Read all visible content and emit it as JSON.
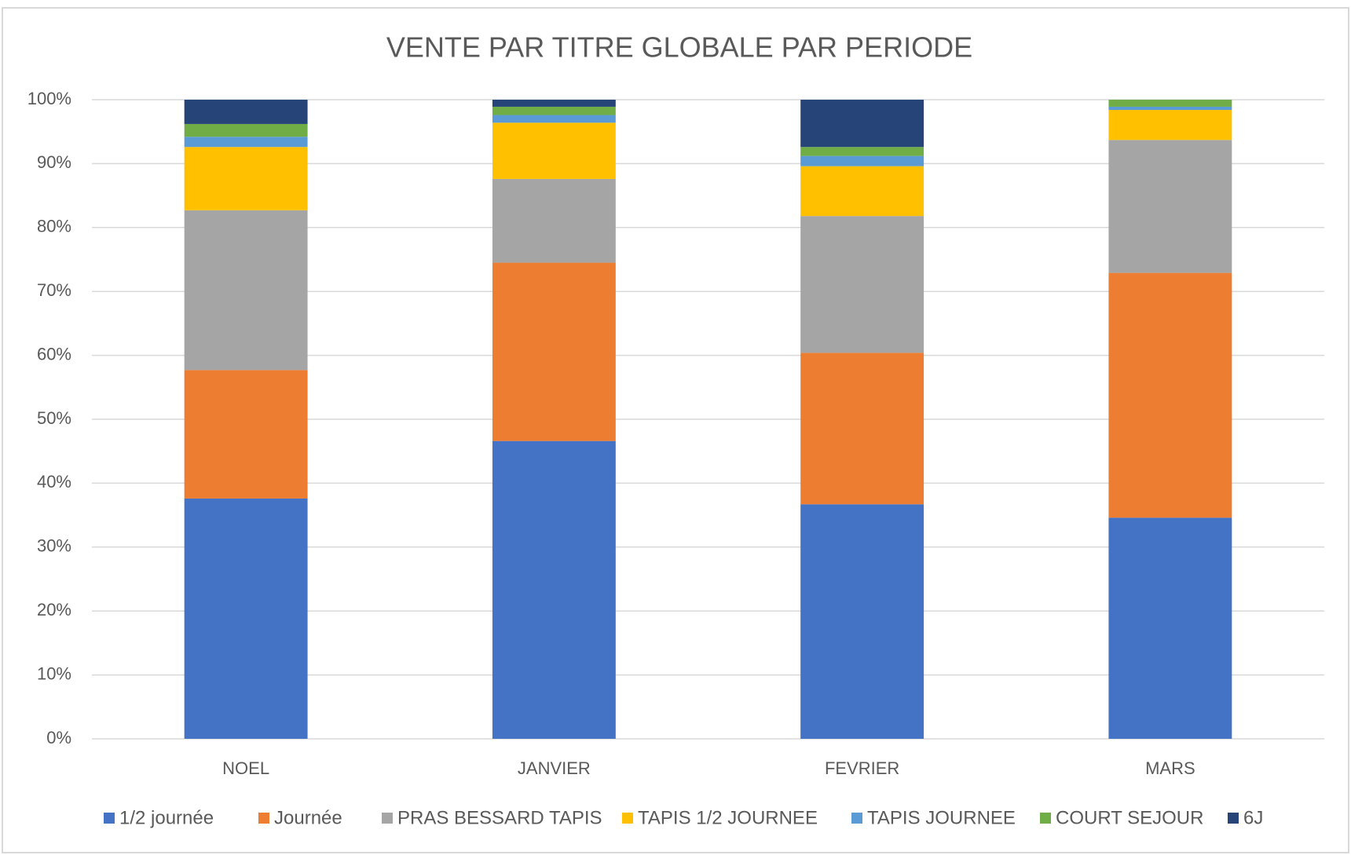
{
  "chart_data": {
    "type": "stacked_bar_percent",
    "title": "VENTE PAR TITRE GLOBALE PAR PERIODE",
    "categories": [
      "NOEL",
      "JANVIER",
      "FEVRIER",
      "MARS"
    ],
    "series": [
      {
        "name": "1/2 journée",
        "color": "#4472c4",
        "values": [
          37.6,
          46.6,
          36.7,
          34.6
        ]
      },
      {
        "name": "Journée",
        "color": "#ed7d31",
        "values": [
          20.1,
          27.9,
          23.7,
          38.3
        ]
      },
      {
        "name": "PRAS BESSARD TAPIS",
        "color": "#a5a5a5",
        "values": [
          25.0,
          13.1,
          21.4,
          20.8
        ]
      },
      {
        "name": "TAPIS 1/2 JOURNEE",
        "color": "#ffc000",
        "values": [
          9.9,
          8.8,
          7.8,
          4.7
        ]
      },
      {
        "name": "TAPIS JOURNEE",
        "color": "#5b9bd5",
        "values": [
          1.6,
          1.2,
          1.6,
          0.5
        ]
      },
      {
        "name": "COURT SEJOUR",
        "color": "#70ad47",
        "values": [
          2.0,
          1.3,
          1.4,
          1.1
        ]
      },
      {
        "name": "6J",
        "color": "#264478",
        "values": [
          3.8,
          1.1,
          7.4,
          0
        ]
      }
    ],
    "ylim": [
      0,
      100
    ],
    "yticks": [
      {
        "value": 0,
        "label": "0%"
      },
      {
        "value": 10,
        "label": "10%"
      },
      {
        "value": 20,
        "label": "20%"
      },
      {
        "value": 30,
        "label": "30%"
      },
      {
        "value": 40,
        "label": "40%"
      },
      {
        "value": 50,
        "label": "50%"
      },
      {
        "value": 60,
        "label": "60%"
      },
      {
        "value": 70,
        "label": "70%"
      },
      {
        "value": 80,
        "label": "80%"
      },
      {
        "value": 90,
        "label": "90%"
      },
      {
        "value": 100,
        "label": "100%"
      }
    ],
    "grid": true,
    "legend": "bottom"
  }
}
